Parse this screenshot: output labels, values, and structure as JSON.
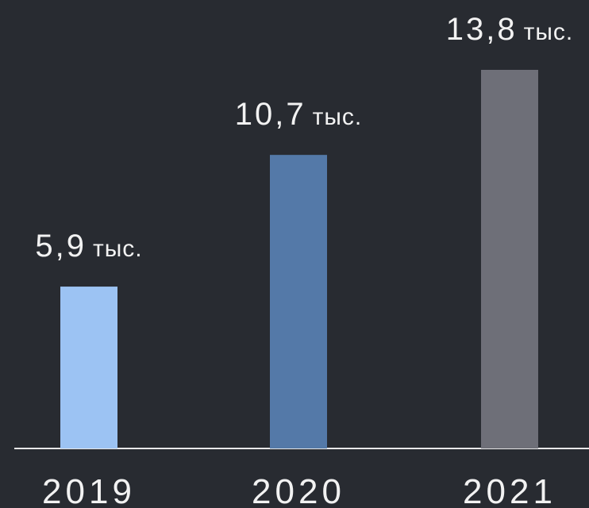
{
  "chart_data": {
    "type": "bar",
    "categories": [
      "2019",
      "2020",
      "2021"
    ],
    "values": [
      5.9,
      10.7,
      13.8
    ],
    "value_labels": [
      "5,9",
      "10,7",
      "13,8"
    ],
    "unit_label": "тыс.",
    "bar_colors": [
      "#9cc3f3",
      "#5479a8",
      "#6e6f78"
    ],
    "background": "#282b31",
    "axis_color": "#e8e8e8",
    "text_color": "#f2f2f2",
    "title": "",
    "xlabel": "",
    "ylabel": "",
    "ylim": [
      0,
      13.8
    ],
    "grid": false,
    "legend": "none"
  }
}
